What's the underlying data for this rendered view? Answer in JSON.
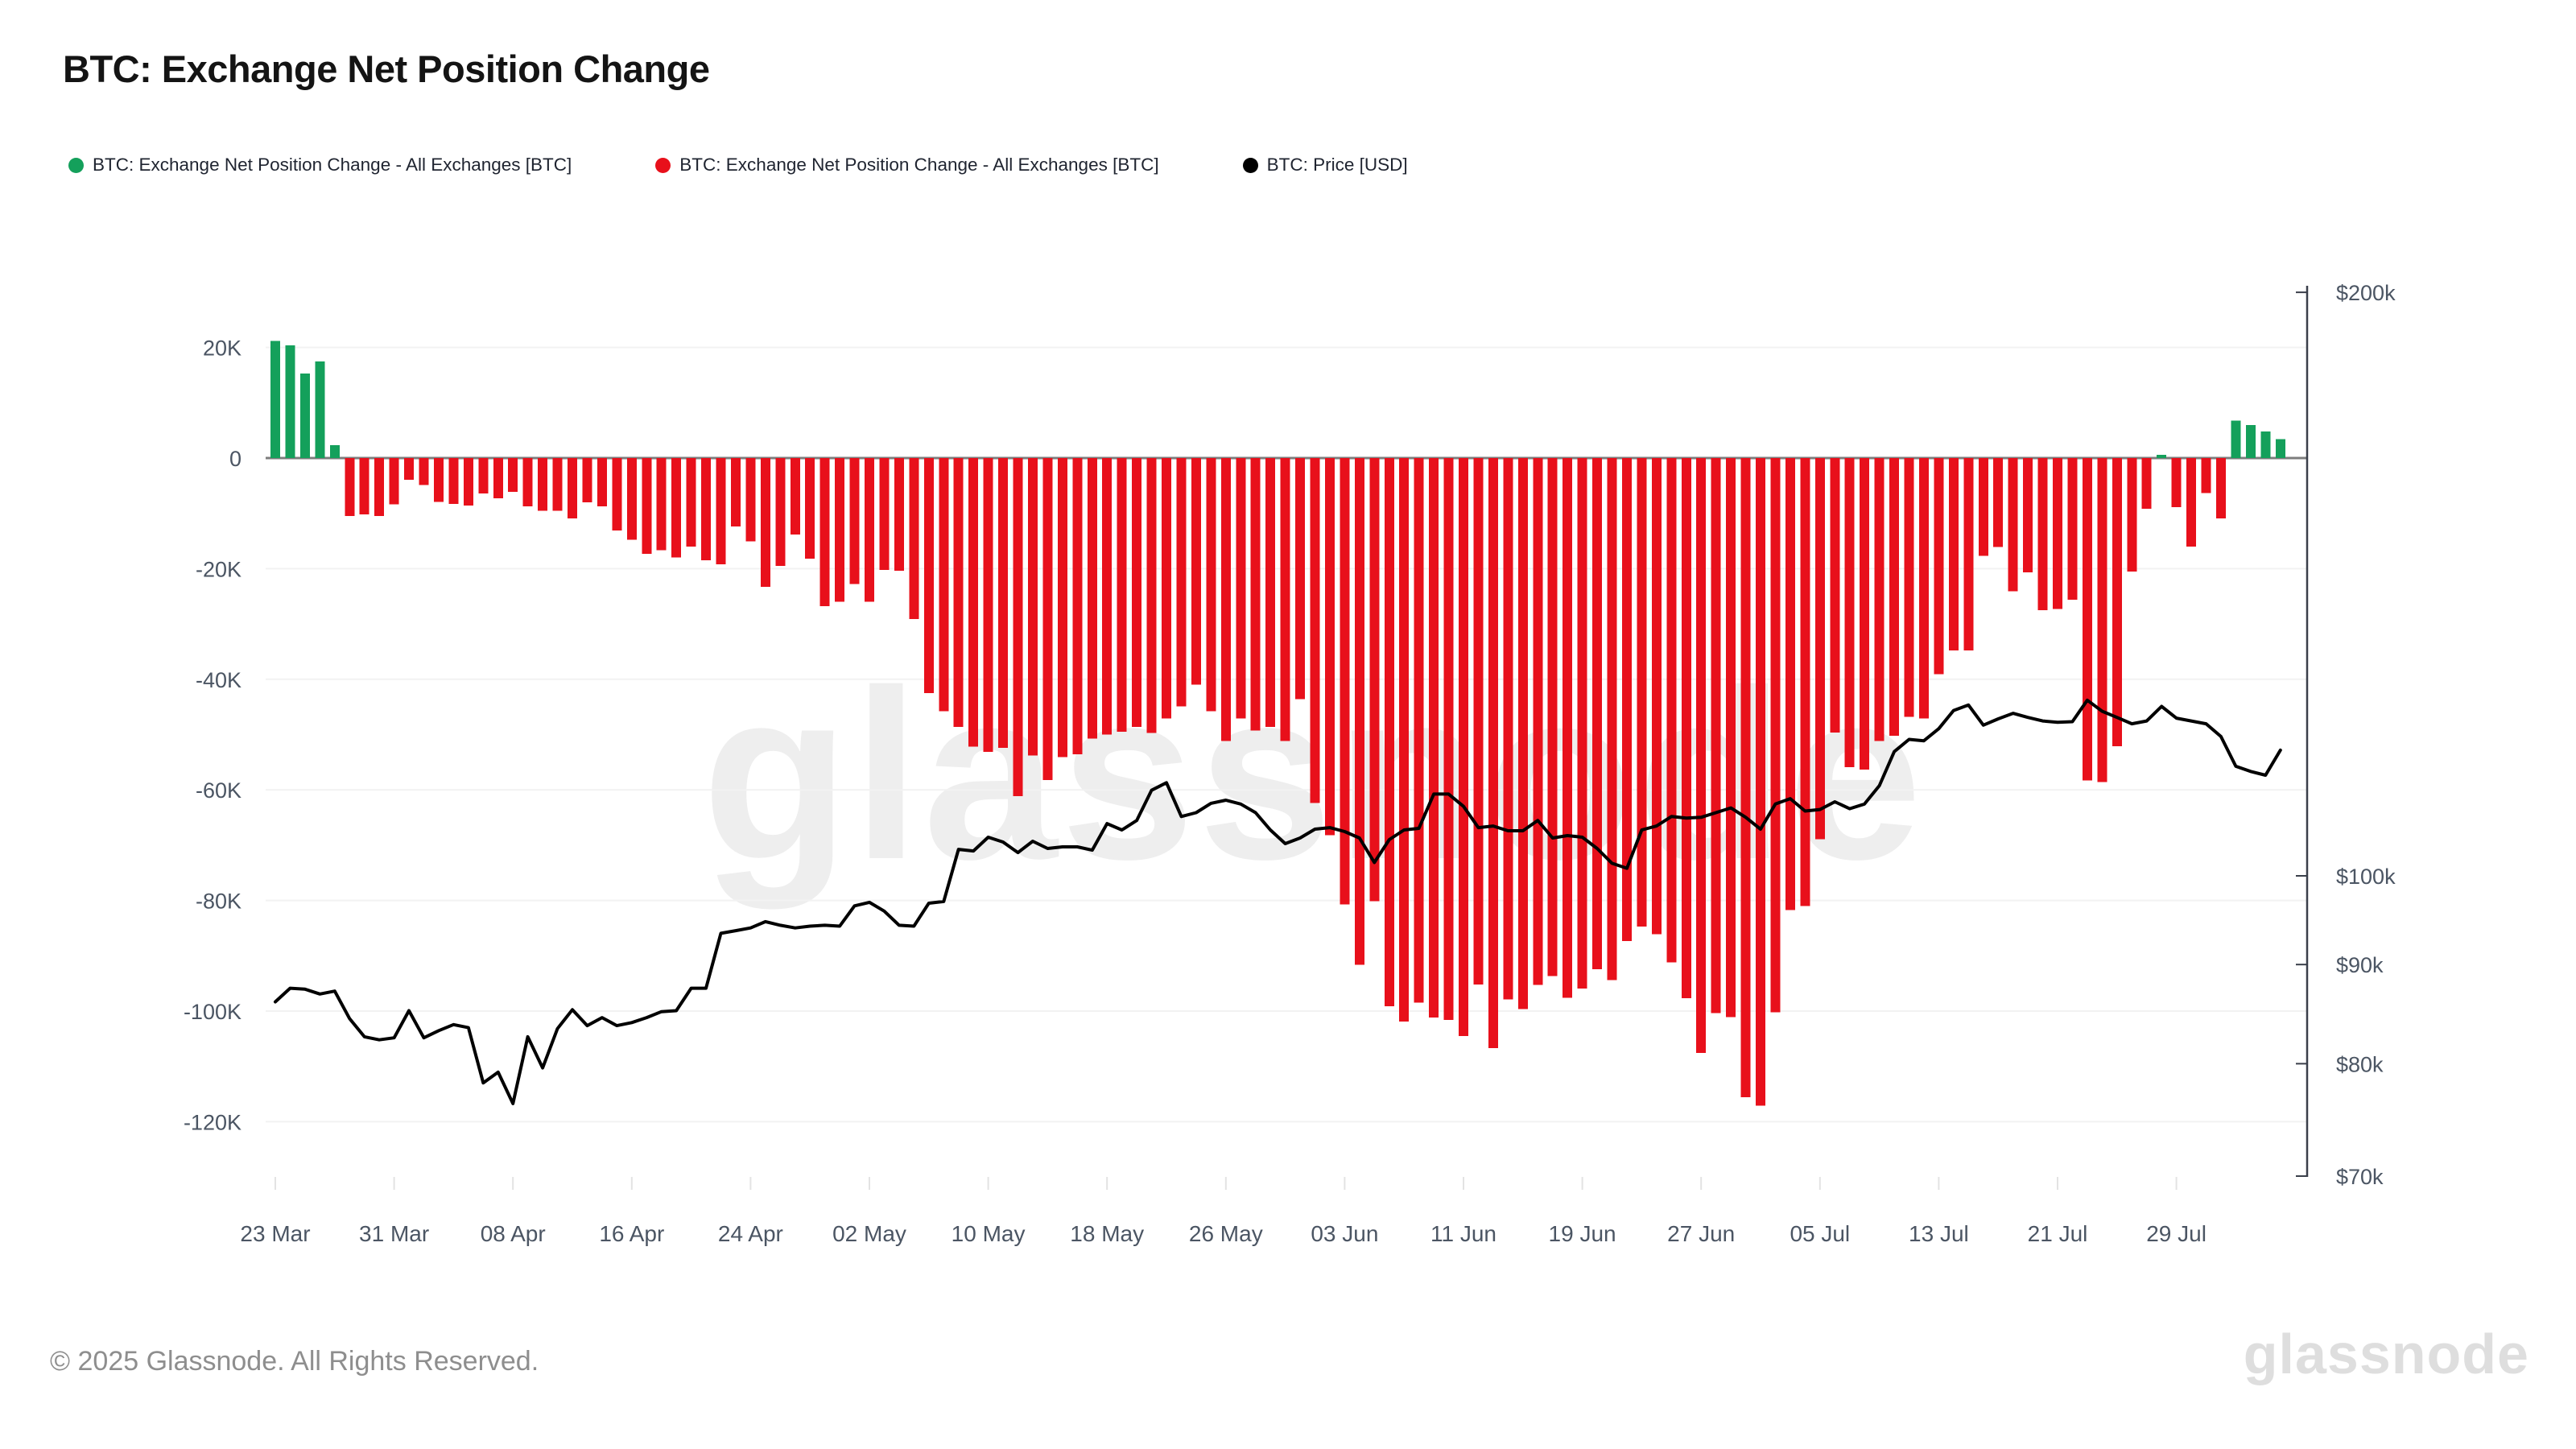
{
  "header": {
    "title": "BTC: Exchange Net Position Change"
  },
  "legend": [
    {
      "label": "BTC: Exchange Net Position Change - All Exchanges [BTC]",
      "color": "#14a05b",
      "icon": "green-dot"
    },
    {
      "label": "BTC: Exchange Net Position Change - All Exchanges [BTC]",
      "color": "#e8101b",
      "icon": "red-dot"
    },
    {
      "label": "BTC: Price [USD]",
      "color": "#000000",
      "icon": "black-dot"
    }
  ],
  "watermark": "glassnode",
  "footer": {
    "copyright": "© 2025 Glassnode. All Rights Reserved.",
    "logo": "glassnode"
  },
  "colors": {
    "bar_positive": "#14a05b",
    "bar_negative": "#e8101b",
    "price_line": "#000000",
    "gridline": "#f2f2f2",
    "zero_line": "#7d7d7d",
    "right_axis_line": "#3a3f4a",
    "axis_text": "#4b5563"
  },
  "chart_data": {
    "type": "bar",
    "title": "BTC: Exchange Net Position Change",
    "left_axis": {
      "unit": "BTC",
      "tick_labels": [
        "20K",
        "0",
        "-20K",
        "-40K",
        "-60K",
        "-80K",
        "-100K",
        "-120K"
      ],
      "tick_values_k": [
        20,
        0,
        -20,
        -40,
        -60,
        -80,
        -100,
        -120
      ],
      "ylim_k": [
        -130,
        25
      ],
      "grid": true
    },
    "right_axis": {
      "unit": "USD",
      "scale": "log",
      "tick_labels": [
        "$200k",
        "$100k",
        "$90k",
        "$80k",
        "$70k"
      ],
      "tick_values_k": [
        200,
        100,
        90,
        80,
        70
      ]
    },
    "x_tick_labels": [
      "23 Mar",
      "31 Mar",
      "08 Apr",
      "16 Apr",
      "24 Apr",
      "02 May",
      "10 May",
      "18 May",
      "26 May",
      "03 Jun",
      "11 Jun",
      "19 Jun",
      "27 Jun",
      "05 Jul",
      "13 Jul",
      "21 Jul",
      "29 Jul"
    ],
    "x_tick_every_n_days": 8,
    "dates": [
      "23 Mar",
      "24 Mar",
      "25 Mar",
      "26 Mar",
      "27 Mar",
      "28 Mar",
      "29 Mar",
      "30 Mar",
      "31 Mar",
      "01 Apr",
      "02 Apr",
      "03 Apr",
      "04 Apr",
      "05 Apr",
      "06 Apr",
      "07 Apr",
      "08 Apr",
      "09 Apr",
      "10 Apr",
      "11 Apr",
      "12 Apr",
      "13 Apr",
      "14 Apr",
      "15 Apr",
      "16 Apr",
      "17 Apr",
      "18 Apr",
      "19 Apr",
      "20 Apr",
      "21 Apr",
      "22 Apr",
      "23 Apr",
      "24 Apr",
      "25 Apr",
      "26 Apr",
      "27 Apr",
      "28 Apr",
      "29 Apr",
      "30 Apr",
      "01 May",
      "02 May",
      "03 May",
      "04 May",
      "05 May",
      "06 May",
      "07 May",
      "08 May",
      "09 May",
      "10 May",
      "11 May",
      "12 May",
      "13 May",
      "14 May",
      "15 May",
      "16 May",
      "17 May",
      "18 May",
      "19 May",
      "20 May",
      "21 May",
      "22 May",
      "23 May",
      "24 May",
      "25 May",
      "26 May",
      "27 May",
      "28 May",
      "29 May",
      "30 May",
      "31 May",
      "01 Jun",
      "02 Jun",
      "03 Jun",
      "04 Jun",
      "05 Jun",
      "06 Jun",
      "07 Jun",
      "08 Jun",
      "09 Jun",
      "10 Jun",
      "11 Jun",
      "12 Jun",
      "13 Jun",
      "14 Jun",
      "15 Jun",
      "16 Jun",
      "17 Jun",
      "18 Jun",
      "19 Jun",
      "20 Jun",
      "21 Jun",
      "22 Jun",
      "23 Jun",
      "24 Jun",
      "25 Jun",
      "26 Jun",
      "27 Jun",
      "28 Jun",
      "29 Jun",
      "30 Jun",
      "01 Jul",
      "02 Jul",
      "03 Jul",
      "04 Jul",
      "05 Jul",
      "06 Jul",
      "07 Jul",
      "08 Jul",
      "09 Jul",
      "10 Jul",
      "11 Jul",
      "12 Jul",
      "13 Jul",
      "14 Jul",
      "15 Jul",
      "16 Jul",
      "17 Jul",
      "18 Jul",
      "19 Jul",
      "20 Jul",
      "21 Jul",
      "22 Jul",
      "23 Jul",
      "24 Jul",
      "25 Jul",
      "26 Jul",
      "27 Jul",
      "28 Jul",
      "29 Jul",
      "30 Jul",
      "31 Jul",
      "01 Aug",
      "02 Aug",
      "03 Aug",
      "04 Aug",
      "05 Aug"
    ],
    "series": [
      {
        "name": "BTC: Exchange Net Position Change - All Exchanges [BTC]",
        "type": "bar",
        "axis": "left",
        "values_k_btc": [
          21.2,
          20.4,
          15.3,
          17.5,
          2.3,
          -10.5,
          -10.2,
          -10.5,
          -8.4,
          -3.9,
          -4.9,
          -7.9,
          -8.3,
          -8.6,
          -6.4,
          -7.3,
          -6.1,
          -8.7,
          -9.5,
          -9.5,
          -10.9,
          -8.0,
          -8.7,
          -13.1,
          -14.8,
          -17.3,
          -16.7,
          -18.0,
          -16.0,
          -18.5,
          -19.2,
          -12.4,
          -15.1,
          -23.3,
          -19.5,
          -13.8,
          -18.2,
          -26.8,
          -26.0,
          -22.8,
          -26.0,
          -20.2,
          -20.4,
          -29.1,
          -42.5,
          -45.8,
          -48.6,
          -52.2,
          -53.1,
          -52.4,
          -61.1,
          -53.8,
          -58.2,
          -54.1,
          -53.6,
          -50.7,
          -50.0,
          -49.5,
          -48.6,
          -49.7,
          -47.1,
          -44.9,
          -41.0,
          -45.8,
          -51.2,
          -47.1,
          -49.3,
          -48.6,
          -51.2,
          -43.6,
          -62.4,
          -68.2,
          -80.7,
          -91.6,
          -80.1,
          -99.1,
          -101.9,
          -98.5,
          -101.2,
          -101.6,
          -104.5,
          -95.2,
          -106.7,
          -97.9,
          -99.6,
          -95.3,
          -93.7,
          -97.6,
          -95.9,
          -92.4,
          -94.4,
          -87.3,
          -84.7,
          -86.1,
          -91.2,
          -97.7,
          -107.6,
          -100.4,
          -101.1,
          -115.6,
          -117.1,
          -100.2,
          -81.7,
          -81.0,
          -68.9,
          -49.6,
          -55.9,
          -56.3,
          -51.2,
          -50.2,
          -46.8,
          -47.1,
          -39.1,
          -34.8,
          -34.8,
          -17.7,
          -16.1,
          -24.1,
          -20.7,
          -27.5,
          -27.3,
          -25.6,
          -58.3,
          -58.6,
          -52.1,
          -20.5,
          -9.2,
          0.6,
          -8.9,
          -16.0,
          -6.3,
          -10.9,
          6.8,
          6.0,
          4.8,
          3.4
        ]
      },
      {
        "name": "BTC: Price [USD]",
        "type": "line",
        "axis": "right",
        "values_usd_k": [
          86.1,
          87.5,
          87.4,
          86.9,
          87.2,
          84.4,
          82.6,
          82.3,
          82.5,
          85.2,
          82.5,
          83.2,
          83.8,
          83.5,
          78.2,
          79.2,
          76.3,
          82.6,
          79.6,
          83.4,
          85.3,
          83.7,
          84.5,
          83.7,
          84.0,
          84.5,
          85.1,
          85.2,
          87.5,
          87.5,
          93.4,
          93.7,
          94.0,
          94.7,
          94.3,
          94.0,
          94.2,
          94.3,
          94.2,
          96.5,
          96.9,
          95.9,
          94.3,
          94.2,
          96.8,
          97.0,
          103.2,
          103.0,
          104.7,
          104.1,
          102.8,
          104.2,
          103.3,
          103.5,
          103.5,
          103.1,
          106.4,
          105.6,
          106.8,
          110.7,
          111.7,
          107.3,
          107.8,
          109.0,
          109.4,
          108.9,
          107.8,
          105.6,
          103.9,
          104.6,
          105.7,
          105.9,
          105.4,
          104.6,
          101.6,
          104.4,
          105.6,
          105.8,
          110.2,
          110.2,
          108.6,
          105.9,
          106.1,
          105.5,
          105.5,
          106.8,
          104.6,
          104.9,
          104.7,
          103.3,
          101.5,
          100.9,
          105.6,
          106.1,
          107.3,
          107.1,
          107.2,
          107.8,
          108.4,
          107.2,
          105.7,
          108.9,
          109.6,
          108.0,
          108.2,
          109.2,
          108.3,
          108.9,
          111.3,
          115.9,
          117.6,
          117.4,
          119.1,
          121.7,
          122.5,
          119.6,
          120.5,
          121.3,
          120.7,
          120.2,
          120.0,
          120.1,
          123.2,
          121.6,
          120.7,
          119.8,
          120.2,
          122.3,
          120.6,
          120.2,
          119.8,
          118.0,
          113.9,
          113.2,
          112.7,
          116.1
        ]
      }
    ],
    "legend_position": "top"
  }
}
